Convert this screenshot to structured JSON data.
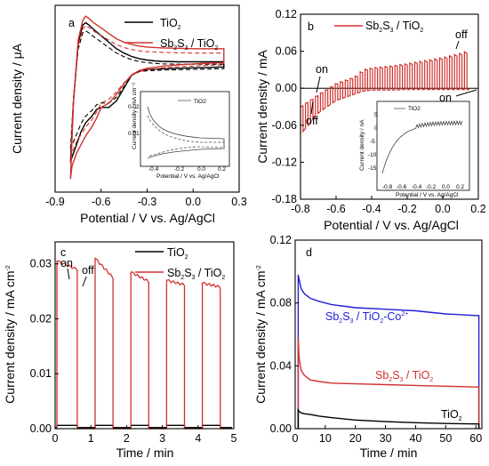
{
  "chart_data": [
    {
      "type": "line",
      "panel_label": "a",
      "xlabel": "Potential / V vs. Ag/AgCl",
      "ylabel": "Current density / μA",
      "x_ticks": [
        "-0.9",
        "-0.6",
        "-0.3",
        "0.0",
        "0.3"
      ],
      "y_ticks": [],
      "xlim": [
        -0.9,
        0.3
      ],
      "ylim": [
        -0.29,
        0.14
      ],
      "legend_position": "top-right",
      "series": [
        {
          "name": "TiO2",
          "color": "#000000",
          "x": [
            -0.8,
            -0.78,
            -0.75,
            -0.72,
            -0.7,
            -0.68,
            -0.65,
            -0.6,
            -0.55,
            -0.5,
            -0.45,
            -0.4,
            -0.35,
            -0.3,
            -0.25,
            -0.2,
            -0.1,
            0.0,
            0.1,
            0.2,
            0.2,
            0.1,
            0.0,
            -0.1,
            -0.2,
            -0.25,
            -0.3,
            -0.35,
            -0.4,
            -0.45,
            -0.5,
            -0.55,
            -0.6,
            -0.63,
            -0.66,
            -0.7,
            -0.73,
            -0.76,
            -0.79,
            -0.8
          ],
          "y": [
            -0.22,
            -0.08,
            0.05,
            0.095,
            0.1,
            0.095,
            0.085,
            0.07,
            0.055,
            0.04,
            0.03,
            0.022,
            0.017,
            0.014,
            0.012,
            0.011,
            0.01,
            0.01,
            0.01,
            0.01,
            -0.002,
            -0.003,
            -0.004,
            -0.005,
            -0.006,
            -0.007,
            -0.008,
            -0.01,
            -0.02,
            -0.05,
            -0.08,
            -0.095,
            -0.095,
            -0.1,
            -0.115,
            -0.13,
            -0.15,
            -0.18,
            -0.21,
            -0.22
          ]
        },
        {
          "name": "Sb2S3 / TiO2",
          "color": "#d0312d",
          "x": [
            -0.8,
            -0.78,
            -0.75,
            -0.72,
            -0.7,
            -0.68,
            -0.65,
            -0.6,
            -0.55,
            -0.5,
            -0.45,
            -0.4,
            -0.35,
            -0.3,
            -0.25,
            -0.2,
            -0.1,
            0.0,
            0.1,
            0.2,
            0.2,
            0.1,
            0.0,
            -0.1,
            -0.2,
            -0.25,
            -0.3,
            -0.35,
            -0.4,
            -0.45,
            -0.5,
            -0.55,
            -0.6,
            -0.63,
            -0.66,
            -0.7,
            -0.73,
            -0.76,
            -0.79,
            -0.8
          ],
          "y": [
            -0.26,
            -0.08,
            0.06,
            0.105,
            0.115,
            0.11,
            0.1,
            0.088,
            0.075,
            0.063,
            0.055,
            0.05,
            0.046,
            0.044,
            0.043,
            0.042,
            0.041,
            0.04,
            0.04,
            0.04,
            0.008,
            0.007,
            0.005,
            0.003,
            0.0,
            -0.003,
            -0.005,
            -0.01,
            -0.02,
            -0.04,
            -0.065,
            -0.085,
            -0.095,
            -0.12,
            -0.14,
            -0.16,
            -0.18,
            -0.2,
            -0.23,
            -0.26
          ]
        }
      ],
      "inset": {
        "legend": "TiO2",
        "xlabel": "Potential / V vs. Ag/AgCl",
        "ylabel": "Current density / mA cm⁻²",
        "x_ticks": [
          "-0.4",
          "-0.2",
          "0.0",
          "0.2"
        ],
        "y_ticks": [
          "0.02",
          "0.01"
        ]
      }
    },
    {
      "type": "line",
      "panel_label": "b",
      "xlabel": "Potential / V vs. Ag/AgCl",
      "ylabel": "Current density / mA",
      "x_ticks": [
        "-0.8",
        "-0.6",
        "-0.4",
        "-0.2",
        "0.0",
        "0.2"
      ],
      "y_ticks": [
        "0.12",
        "0.06",
        "0.00",
        "-0.06",
        "-0.12",
        "-0.18"
      ],
      "xlim": [
        -0.8,
        0.2
      ],
      "ylim": [
        -0.18,
        0.12
      ],
      "legend_position": "top-right",
      "annotations": [
        "on",
        "off",
        "off",
        "on"
      ],
      "series": [
        {
          "name": "Sb2S3 / TiO2",
          "color": "#d0312d",
          "x_start": -0.8,
          "x_end": 0.15,
          "n_pulses": 34,
          "x": [
            -0.8,
            -0.7,
            -0.6,
            -0.5,
            -0.45,
            -0.4,
            -0.3,
            -0.2,
            -0.1,
            0.0,
            0.1,
            0.15
          ],
          "y_dark": [
            -0.075,
            -0.04,
            -0.02,
            -0.01,
            -0.005,
            -0.003,
            -0.003,
            -0.002,
            -0.002,
            -0.002,
            -0.002,
            -0.002
          ],
          "y_light": [
            -0.03,
            -0.01,
            0.008,
            0.018,
            0.03,
            0.033,
            0.036,
            0.04,
            0.045,
            0.05,
            0.057,
            0.062
          ]
        }
      ],
      "inset": {
        "legend": "TiO2",
        "xlabel": "Potential / V vs. Ag/AgCl",
        "ylabel": "Current density / nA",
        "x_ticks": [
          "-0.8",
          "-0.6",
          "-0.4",
          "-0.2",
          "0.0",
          "0.2"
        ],
        "y_ticks": [
          "5",
          "0",
          "-5",
          "-10",
          "-15"
        ]
      }
    },
    {
      "type": "line",
      "panel_label": "c",
      "xlabel": "Time / min",
      "ylabel": "Current density / mA cm⁻²",
      "x_ticks": [
        "0",
        "1",
        "2",
        "3",
        "4",
        "5"
      ],
      "y_ticks": [
        "0.00",
        "0.01",
        "0.02",
        "0.03"
      ],
      "xlim": [
        0,
        5
      ],
      "ylim": [
        0,
        0.034
      ],
      "legend_position": "top-right",
      "annotations": [
        "on",
        "off"
      ],
      "series": [
        {
          "name": "TiO2",
          "color": "#000000",
          "on_intervals": [
            [
              0.05,
              0.62
            ],
            [
              1.12,
              1.62
            ],
            [
              2.12,
              2.62
            ],
            [
              3.12,
              3.62
            ],
            [
              4.12,
              4.62
            ]
          ],
          "y_on": 0.0006,
          "y_off": 0.0002
        },
        {
          "name": "Sb2S3 / TiO2",
          "color": "#d0312d",
          "on_intervals": [
            [
              0.05,
              0.62
            ],
            [
              1.12,
              1.62
            ],
            [
              2.12,
              2.62
            ],
            [
              3.12,
              3.62
            ],
            [
              4.12,
              4.62
            ]
          ],
          "y_start": [
            0.0305,
            0.031,
            0.0285,
            0.027,
            0.0265
          ],
          "y_end": [
            0.029,
            0.0275,
            0.0268,
            0.0262,
            0.0258
          ],
          "y_off": 0.0
        }
      ]
    },
    {
      "type": "line",
      "panel_label": "d",
      "xlabel": "Time / min",
      "ylabel": "Current density / mA cm⁻²",
      "x_ticks": [
        "0",
        "10",
        "20",
        "30",
        "40",
        "50",
        "60"
      ],
      "y_ticks": [
        "0.00",
        "0.04",
        "0.08",
        "0.12"
      ],
      "xlim": [
        0,
        62
      ],
      "ylim": [
        0,
        0.12
      ],
      "legend_position": "inline labels",
      "series": [
        {
          "name": "Sb2S3 / TiO2-Co2+",
          "color": "#1f1fd6",
          "x": [
            1,
            1.3,
            2,
            3,
            5,
            8,
            12,
            20,
            30,
            40,
            50,
            60,
            61
          ],
          "y": [
            0.098,
            0.095,
            0.089,
            0.086,
            0.083,
            0.081,
            0.079,
            0.077,
            0.076,
            0.075,
            0.073,
            0.072,
            0.072
          ]
        },
        {
          "name": "Sb2S3 / TiO2",
          "color": "#d0312d",
          "x": [
            1,
            1.3,
            2,
            3,
            5,
            8,
            12,
            20,
            30,
            40,
            50,
            60,
            61
          ],
          "y": [
            0.058,
            0.045,
            0.037,
            0.034,
            0.031,
            0.03,
            0.029,
            0.0285,
            0.028,
            0.0275,
            0.027,
            0.0265,
            0.0265
          ]
        },
        {
          "name": "TiO2",
          "color": "#000000",
          "x": [
            1,
            1.3,
            2,
            3,
            5,
            8,
            12,
            20,
            30,
            40,
            50,
            60,
            61
          ],
          "y": [
            0.012,
            0.011,
            0.01,
            0.0095,
            0.009,
            0.008,
            0.007,
            0.0055,
            0.0045,
            0.0038,
            0.0033,
            0.003,
            0.003
          ]
        }
      ]
    }
  ]
}
